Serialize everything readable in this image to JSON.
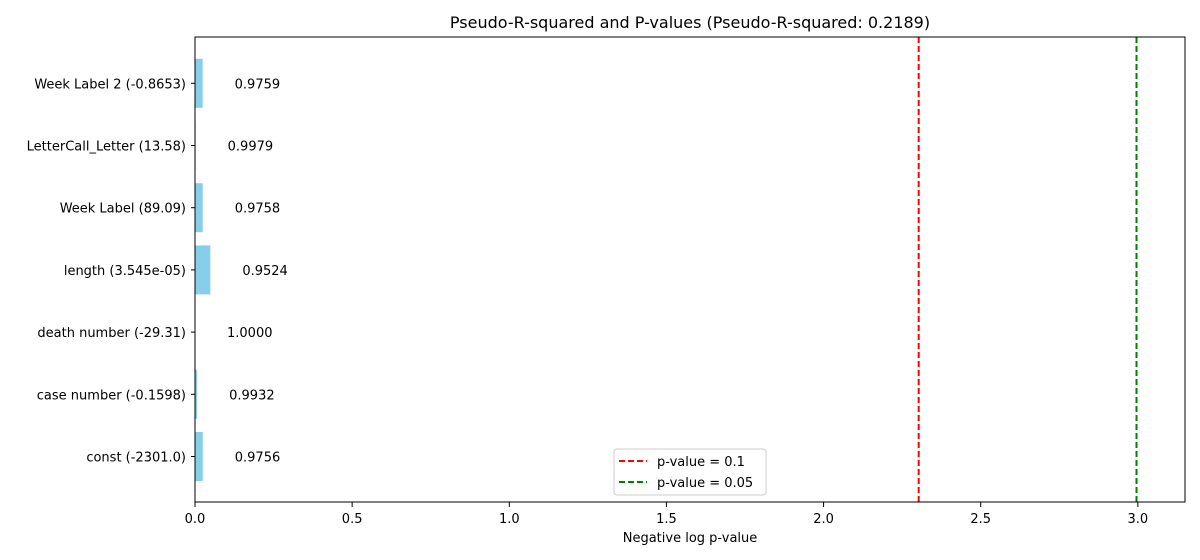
{
  "chart_data": {
    "type": "bar",
    "orientation": "horizontal",
    "title": "Pseudo-R-squared and P-values (Pseudo-R-squared: 0.2189)",
    "xlabel": "Negative log p-value",
    "ylabel": "",
    "xlim": [
      0,
      3.15
    ],
    "xticks": [
      "0.0",
      "0.5",
      "1.0",
      "1.5",
      "2.0",
      "2.5",
      "3.0"
    ],
    "xtick_values": [
      0,
      0.5,
      1.0,
      1.5,
      2.0,
      2.5,
      3.0
    ],
    "grid": false,
    "bar_color": "#87ceeb",
    "categories": [
      "const (-2301.0)",
      "case number (-0.1598)",
      "death number (-29.31)",
      "length (3.545e-05)",
      "Week Label (89.09)",
      "LetterCall_Letter (13.58)",
      "Week Label 2 (-0.8653)"
    ],
    "values": [
      0.0247,
      0.0068,
      0.0,
      0.0488,
      0.0245,
      0.0021,
      0.0244
    ],
    "value_labels": [
      "0.9756",
      "0.9932",
      "1.0000",
      "0.9524",
      "0.9758",
      "0.9979",
      "0.9759"
    ],
    "reference_lines": [
      {
        "label": "p-value = 0.1",
        "x": 2.3026,
        "color": "#ff0000",
        "style": "dashed"
      },
      {
        "label": "p-value = 0.05",
        "x": 2.9957,
        "color": "#008000",
        "style": "dashed"
      }
    ],
    "legend_position": "bottom-center"
  }
}
